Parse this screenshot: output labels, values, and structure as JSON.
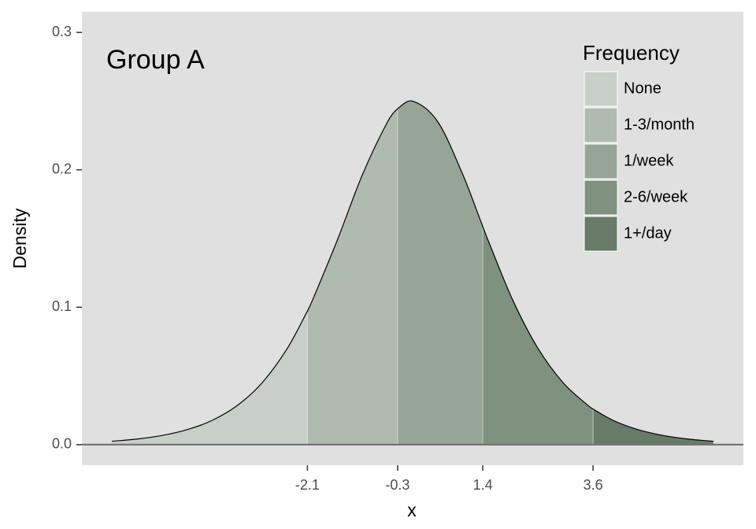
{
  "chart_data": {
    "type": "area",
    "title": "Group A",
    "x_label": "x",
    "y_label": "Density",
    "x": [
      -6,
      -5.5,
      -5,
      -4.5,
      -4,
      -3.5,
      -3,
      -2.5,
      -2.1,
      -2,
      -1.5,
      -1,
      -0.5,
      -0.3,
      0,
      0.5,
      1,
      1.4,
      1.5,
      2,
      2.5,
      3,
      3.5,
      3.6,
      4,
      4.5,
      5,
      5.5,
      6
    ],
    "values": [
      0.00246,
      0.00405,
      0.00665,
      0.01087,
      0.01766,
      0.02845,
      0.04518,
      0.0701,
      0.09719,
      0.10499,
      0.14915,
      0.19661,
      0.235,
      0.24446,
      0.25,
      0.235,
      0.19661,
      0.15868,
      0.14915,
      0.10499,
      0.0701,
      0.04518,
      0.02845,
      0.02589,
      0.01766,
      0.01087,
      0.00665,
      0.00405,
      0.00246
    ],
    "xlim": [
      -6.6,
      6.6
    ],
    "ylim": [
      -0.015,
      0.315
    ],
    "xticks": [
      -2.1,
      -0.3,
      1.4,
      3.6
    ],
    "yticks": [
      {
        "value": 0,
        "label": "0.0"
      },
      0.1,
      0.2,
      0.3
    ],
    "legend": {
      "title": "Frequency",
      "position": "top-right",
      "entries": [
        {
          "name": "None",
          "color": "#c8cfc8"
        },
        {
          "name": "1-3/month",
          "color": "#b0bbb0"
        },
        {
          "name": "1/week",
          "color": "#97a597"
        },
        {
          "name": "2-6/week",
          "color": "#7f917f"
        },
        {
          "name": "1+/day",
          "color": "#687b68"
        }
      ]
    }
  }
}
